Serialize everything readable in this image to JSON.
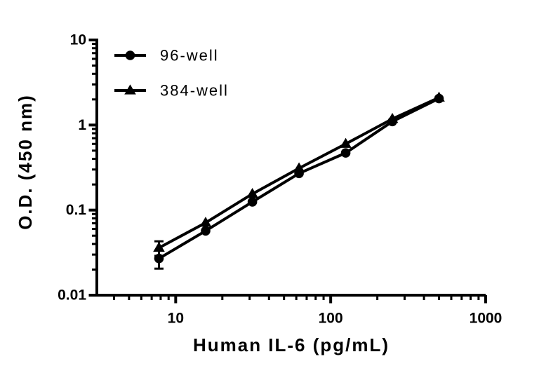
{
  "figure": {
    "background": "#ffffff",
    "ink": "#000000"
  },
  "chart_data": {
    "type": "line",
    "title": "",
    "xlabel": "Human IL-6 (pg/mL)",
    "ylabel": "O.D. (450 nm)",
    "x_scale": "log",
    "y_scale": "log",
    "xlim": [
      3.1,
      1000
    ],
    "ylim": [
      0.01,
      10
    ],
    "grid": false,
    "legend_position": "upper-left-inside",
    "x_ticks": {
      "major": [
        10,
        100,
        1000
      ],
      "labels": [
        "10",
        "100",
        "1000"
      ],
      "minor_pattern": "log-decades-2-9"
    },
    "y_ticks": {
      "major": [
        10,
        1,
        0.1,
        0.01
      ],
      "labels": [
        "10",
        "1",
        "0.1",
        "0.01"
      ],
      "minor_pattern": "log-decades-2-9"
    },
    "x": [
      7.8,
      15.6,
      31.25,
      62.5,
      125,
      250,
      500
    ],
    "series": [
      {
        "name": "96-well",
        "marker": "circle",
        "values": [
          0.027,
          0.057,
          0.125,
          0.27,
          0.47,
          1.1,
          2.05
        ],
        "error": [
          0.0065,
          0,
          0,
          0,
          0,
          0,
          0
        ]
      },
      {
        "name": "384-well",
        "marker": "triangle",
        "values": [
          0.036,
          0.071,
          0.155,
          0.31,
          0.6,
          1.18,
          2.1
        ],
        "error": [
          0.007,
          0,
          0,
          0,
          0,
          0,
          0
        ]
      }
    ]
  }
}
